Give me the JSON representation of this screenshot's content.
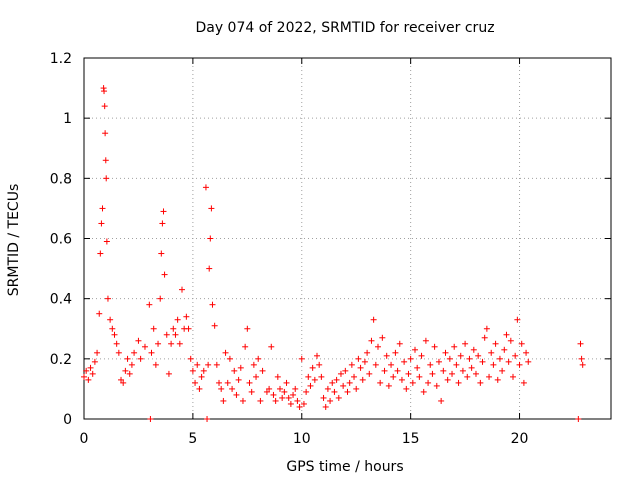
{
  "chart_data": {
    "type": "scatter",
    "title": "Day 074 of 2022, SRMTID for receiver cruz",
    "xlabel": "GPS time / hours",
    "ylabel": "SRMTID / TECUs",
    "xlim": [
      0,
      24.2
    ],
    "ylim": [
      0,
      1.2
    ],
    "x_ticks": [
      0,
      5,
      10,
      15,
      20
    ],
    "y_ticks": [
      0,
      0.2,
      0.4,
      0.6,
      0.8,
      1.0,
      1.2
    ],
    "y_tick_labels": [
      "0",
      "0.2",
      "0.4",
      "0.6",
      "0.8",
      "1",
      "1.2"
    ],
    "grid": true,
    "marker": "+",
    "series": [
      {
        "name": "SRMTID",
        "color": "#ff0000",
        "points": [
          [
            0.0,
            0.14
          ],
          [
            0.1,
            0.16
          ],
          [
            0.2,
            0.13
          ],
          [
            0.3,
            0.17
          ],
          [
            0.4,
            0.15
          ],
          [
            0.5,
            0.19
          ],
          [
            0.6,
            0.22
          ],
          [
            0.7,
            0.35
          ],
          [
            0.75,
            0.55
          ],
          [
            0.8,
            0.65
          ],
          [
            0.85,
            0.7
          ],
          [
            0.9,
            1.1
          ],
          [
            0.92,
            1.09
          ],
          [
            0.95,
            1.04
          ],
          [
            0.97,
            0.95
          ],
          [
            1.0,
            0.86
          ],
          [
            1.02,
            0.8
          ],
          [
            1.05,
            0.59
          ],
          [
            1.1,
            0.4
          ],
          [
            1.2,
            0.33
          ],
          [
            1.3,
            0.3
          ],
          [
            1.4,
            0.28
          ],
          [
            1.5,
            0.25
          ],
          [
            1.6,
            0.22
          ],
          [
            1.7,
            0.13
          ],
          [
            1.8,
            0.12
          ],
          [
            1.9,
            0.16
          ],
          [
            2.0,
            0.2
          ],
          [
            2.1,
            0.15
          ],
          [
            2.2,
            0.18
          ],
          [
            2.3,
            0.22
          ],
          [
            2.5,
            0.26
          ],
          [
            2.6,
            0.2
          ],
          [
            2.8,
            0.24
          ],
          [
            3.0,
            0.38
          ],
          [
            3.1,
            0.22
          ],
          [
            3.2,
            0.3
          ],
          [
            3.3,
            0.18
          ],
          [
            3.4,
            0.25
          ],
          [
            3.5,
            0.4
          ],
          [
            3.55,
            0.55
          ],
          [
            3.6,
            0.65
          ],
          [
            3.65,
            0.69
          ],
          [
            3.7,
            0.48
          ],
          [
            3.8,
            0.28
          ],
          [
            3.9,
            0.15
          ],
          [
            4.0,
            0.25
          ],
          [
            4.1,
            0.3
          ],
          [
            4.2,
            0.28
          ],
          [
            4.3,
            0.33
          ],
          [
            4.4,
            0.25
          ],
          [
            4.5,
            0.43
          ],
          [
            4.6,
            0.3
          ],
          [
            4.7,
            0.34
          ],
          [
            4.8,
            0.3
          ],
          [
            4.9,
            0.2
          ],
          [
            5.0,
            0.16
          ],
          [
            5.1,
            0.12
          ],
          [
            5.2,
            0.18
          ],
          [
            5.3,
            0.1
          ],
          [
            5.4,
            0.14
          ],
          [
            5.5,
            0.16
          ],
          [
            5.6,
            0.77
          ],
          [
            5.7,
            0.18
          ],
          [
            5.75,
            0.5
          ],
          [
            5.8,
            0.6
          ],
          [
            5.85,
            0.7
          ],
          [
            5.9,
            0.38
          ],
          [
            6.0,
            0.31
          ],
          [
            6.1,
            0.18
          ],
          [
            6.2,
            0.12
          ],
          [
            6.3,
            0.1
          ],
          [
            6.4,
            0.06
          ],
          [
            6.5,
            0.22
          ],
          [
            6.6,
            0.12
          ],
          [
            6.7,
            0.2
          ],
          [
            6.8,
            0.1
          ],
          [
            6.9,
            0.16
          ],
          [
            7.0,
            0.08
          ],
          [
            7.1,
            0.13
          ],
          [
            7.2,
            0.17
          ],
          [
            7.3,
            0.06
          ],
          [
            7.4,
            0.24
          ],
          [
            7.5,
            0.3
          ],
          [
            7.6,
            0.12
          ],
          [
            7.7,
            0.09
          ],
          [
            7.8,
            0.18
          ],
          [
            7.9,
            0.14
          ],
          [
            8.0,
            0.2
          ],
          [
            8.1,
            0.06
          ],
          [
            8.2,
            0.16
          ],
          [
            8.4,
            0.09
          ],
          [
            8.5,
            0.1
          ],
          [
            8.6,
            0.24
          ],
          [
            8.7,
            0.08
          ],
          [
            8.8,
            0.06
          ],
          [
            8.9,
            0.14
          ],
          [
            9.0,
            0.1
          ],
          [
            9.1,
            0.07
          ],
          [
            9.2,
            0.09
          ],
          [
            9.3,
            0.12
          ],
          [
            9.4,
            0.07
          ],
          [
            9.5,
            0.05
          ],
          [
            9.6,
            0.08
          ],
          [
            9.7,
            0.1
          ],
          [
            9.8,
            0.06
          ],
          [
            9.9,
            0.04
          ],
          [
            10.0,
            0.2
          ],
          [
            10.1,
            0.05
          ],
          [
            10.2,
            0.09
          ],
          [
            10.3,
            0.14
          ],
          [
            10.4,
            0.11
          ],
          [
            10.5,
            0.17
          ],
          [
            10.6,
            0.13
          ],
          [
            10.7,
            0.21
          ],
          [
            10.8,
            0.18
          ],
          [
            10.9,
            0.14
          ],
          [
            11.0,
            0.07
          ],
          [
            11.1,
            0.04
          ],
          [
            11.2,
            0.1
          ],
          [
            11.3,
            0.06
          ],
          [
            11.4,
            0.12
          ],
          [
            11.5,
            0.09
          ],
          [
            11.6,
            0.13
          ],
          [
            11.7,
            0.07
          ],
          [
            11.8,
            0.15
          ],
          [
            11.9,
            0.11
          ],
          [
            12.0,
            0.16
          ],
          [
            12.1,
            0.09
          ],
          [
            12.2,
            0.12
          ],
          [
            12.3,
            0.18
          ],
          [
            12.4,
            0.14
          ],
          [
            12.5,
            0.1
          ],
          [
            12.6,
            0.2
          ],
          [
            12.7,
            0.17
          ],
          [
            12.8,
            0.13
          ],
          [
            12.9,
            0.19
          ],
          [
            13.0,
            0.22
          ],
          [
            13.1,
            0.15
          ],
          [
            13.2,
            0.26
          ],
          [
            13.3,
            0.33
          ],
          [
            13.4,
            0.18
          ],
          [
            13.5,
            0.24
          ],
          [
            13.6,
            0.12
          ],
          [
            13.7,
            0.27
          ],
          [
            13.8,
            0.16
          ],
          [
            13.9,
            0.21
          ],
          [
            14.0,
            0.11
          ],
          [
            14.1,
            0.18
          ],
          [
            14.2,
            0.14
          ],
          [
            14.3,
            0.22
          ],
          [
            14.4,
            0.16
          ],
          [
            14.5,
            0.25
          ],
          [
            14.6,
            0.13
          ],
          [
            14.7,
            0.19
          ],
          [
            14.8,
            0.1
          ],
          [
            14.9,
            0.15
          ],
          [
            15.0,
            0.2
          ],
          [
            15.1,
            0.12
          ],
          [
            15.2,
            0.23
          ],
          [
            15.3,
            0.17
          ],
          [
            15.4,
            0.14
          ],
          [
            15.5,
            0.21
          ],
          [
            15.6,
            0.09
          ],
          [
            15.7,
            0.26
          ],
          [
            15.8,
            0.12
          ],
          [
            15.9,
            0.18
          ],
          [
            16.0,
            0.15
          ],
          [
            16.1,
            0.24
          ],
          [
            16.2,
            0.11
          ],
          [
            16.3,
            0.19
          ],
          [
            16.4,
            0.06
          ],
          [
            16.5,
            0.16
          ],
          [
            16.6,
            0.22
          ],
          [
            16.7,
            0.13
          ],
          [
            16.8,
            0.2
          ],
          [
            16.9,
            0.15
          ],
          [
            17.0,
            0.24
          ],
          [
            17.1,
            0.18
          ],
          [
            17.2,
            0.12
          ],
          [
            17.3,
            0.21
          ],
          [
            17.4,
            0.16
          ],
          [
            17.5,
            0.25
          ],
          [
            17.6,
            0.14
          ],
          [
            17.7,
            0.2
          ],
          [
            17.8,
            0.17
          ],
          [
            17.9,
            0.23
          ],
          [
            18.0,
            0.15
          ],
          [
            18.1,
            0.21
          ],
          [
            18.2,
            0.12
          ],
          [
            18.3,
            0.19
          ],
          [
            18.4,
            0.27
          ],
          [
            18.5,
            0.3
          ],
          [
            18.6,
            0.14
          ],
          [
            18.7,
            0.22
          ],
          [
            18.8,
            0.18
          ],
          [
            18.9,
            0.25
          ],
          [
            19.0,
            0.13
          ],
          [
            19.1,
            0.2
          ],
          [
            19.2,
            0.16
          ],
          [
            19.3,
            0.23
          ],
          [
            19.4,
            0.28
          ],
          [
            19.5,
            0.19
          ],
          [
            19.6,
            0.26
          ],
          [
            19.7,
            0.14
          ],
          [
            19.8,
            0.21
          ],
          [
            19.9,
            0.33
          ],
          [
            20.0,
            0.18
          ],
          [
            20.1,
            0.25
          ],
          [
            20.2,
            0.12
          ],
          [
            20.3,
            0.22
          ],
          [
            20.4,
            0.19
          ],
          [
            22.8,
            0.25
          ],
          [
            22.85,
            0.2
          ],
          [
            22.9,
            0.18
          ],
          [
            3.05,
            0.0
          ],
          [
            5.65,
            0.0
          ],
          [
            22.7,
            0.0
          ]
        ]
      }
    ]
  }
}
